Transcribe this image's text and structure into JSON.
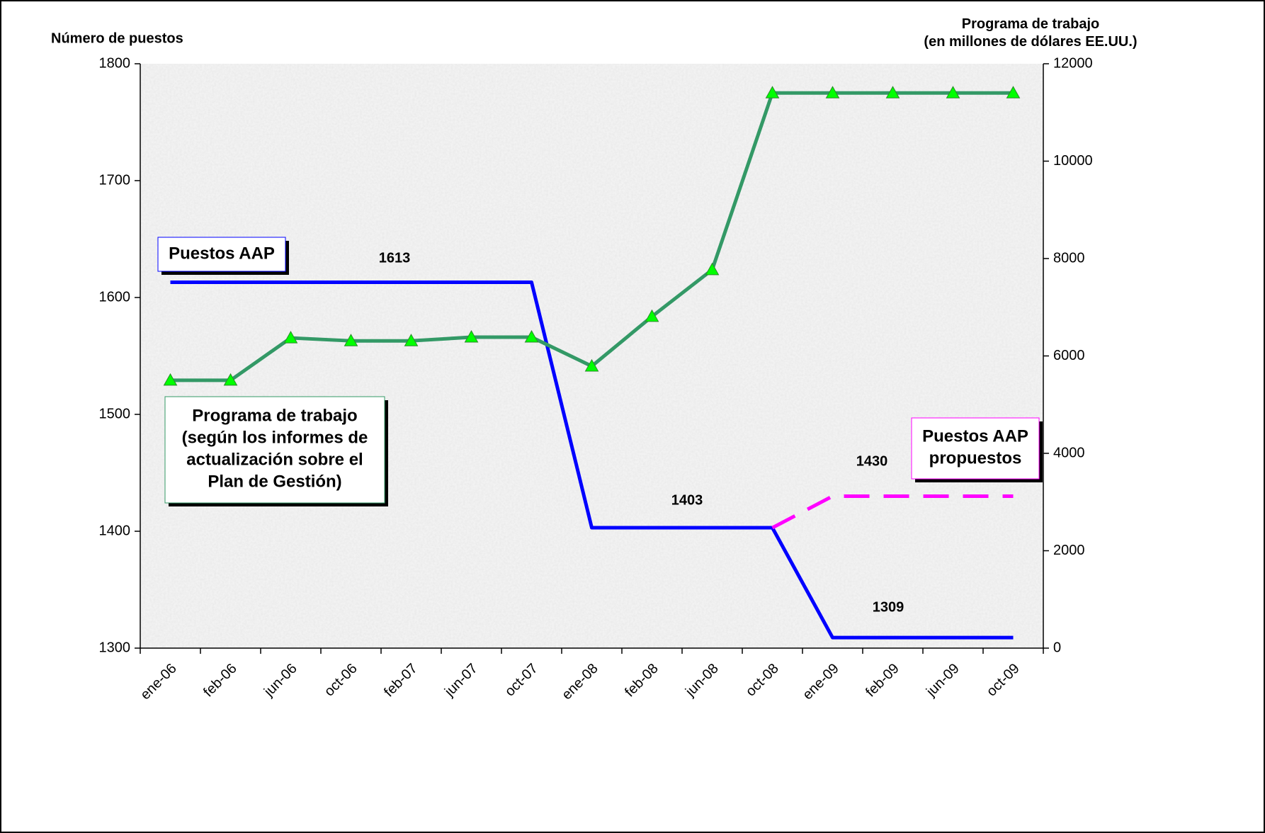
{
  "chart_data": {
    "type": "line",
    "y_label": "Número de puestos",
    "y2_label": "Programa de trabajo\n(en millones de dólares EE.UU.)",
    "categories": [
      "ene-06",
      "feb-06",
      "jun-06",
      "oct-06",
      "feb-07",
      "jun-07",
      "oct-07",
      "ene-08",
      "feb-08",
      "jun-08",
      "oct-08",
      "ene-09",
      "feb-09",
      "jun-09",
      "oct-09"
    ],
    "series": [
      {
        "name": "Puestos AAP",
        "color": "#0000ff",
        "values": [
          1613,
          1613,
          1613,
          1613,
          1613,
          1613,
          1613,
          1403,
          1403,
          1403,
          1403,
          1309,
          1309,
          1309,
          1309
        ]
      },
      {
        "name": "Puestos AAP\npropuestos",
        "color": "#ff00ff",
        "dashed": true,
        "values": [
          null,
          null,
          null,
          null,
          null,
          null,
          null,
          null,
          null,
          null,
          1403,
          1430,
          1430,
          1430,
          1430
        ]
      },
      {
        "name": "Programa de trabajo\n(según los informes de\nactualización sobre el\nPlan de Gestión)",
        "color": "#339966",
        "marker_color": "#00ff00",
        "axis": "y2",
        "values": [
          5500,
          5500,
          6370,
          6310,
          6310,
          6385,
          6385,
          5790,
          6810,
          7770,
          11400,
          11400,
          11400,
          11400,
          11400
        ]
      }
    ],
    "annotations": [
      "1613",
      "1403",
      "1309",
      "1430"
    ],
    "ylim": [
      1300,
      1800
    ],
    "yticks": [
      1300,
      1400,
      1500,
      1600,
      1700,
      1800
    ],
    "y2lim": [
      0,
      12000
    ],
    "y2ticks": [
      0,
      2000,
      4000,
      6000,
      8000,
      10000,
      12000
    ]
  }
}
